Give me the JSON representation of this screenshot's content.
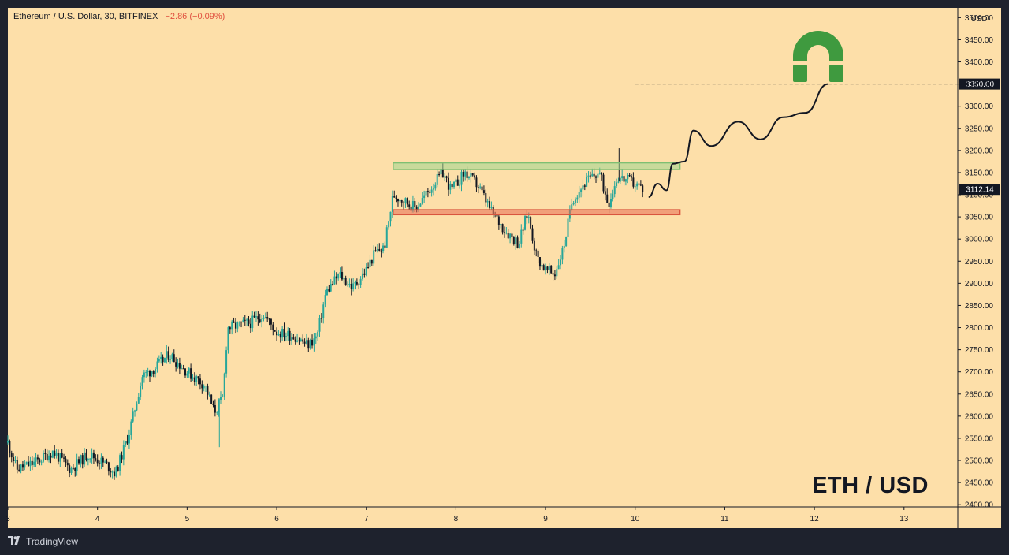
{
  "header": {
    "symbol": "Ethereum / U.S. Dollar, 30, BITFINEX",
    "change": "−2.86 (−0.09%)"
  },
  "footer": {
    "brand": "TradingView"
  },
  "overlay_label": "ETH / USD",
  "colors": {
    "background": "#fddfa9",
    "frame": "#1e222d",
    "candle_up": "#26a69a",
    "candle_down": "#131722",
    "resistance": "#9ed68f",
    "support": "#e86a52",
    "magnet": "#3f9a3f",
    "change_text": "#e0503f"
  },
  "icons": {
    "magnet": "magnet-icon",
    "brand": "tradingview-logo-icon"
  },
  "chart_data": {
    "type": "candlestick",
    "title": "Ethereum / U.S. Dollar, 30, BITFINEX",
    "currency": "USD",
    "x_ticks": [
      "3",
      "4",
      "5",
      "6",
      "7",
      "8",
      "9",
      "10",
      "11",
      "12",
      "13"
    ],
    "x_range": [
      3,
      13.6
    ],
    "y_ticks": [
      2400,
      2450,
      2500,
      2550,
      2600,
      2650,
      2700,
      2750,
      2800,
      2850,
      2900,
      2950,
      3000,
      3050,
      3100,
      3150,
      3200,
      3250,
      3300,
      3350,
      3400,
      3450,
      3500
    ],
    "y_range": [
      2395,
      3522
    ],
    "y_tick_format": "0.00",
    "price_trend": [
      [
        3.0,
        2540
      ],
      [
        3.1,
        2480
      ],
      [
        3.3,
        2495
      ],
      [
        3.5,
        2520
      ],
      [
        3.7,
        2480
      ],
      [
        3.9,
        2515
      ],
      [
        4.1,
        2490
      ],
      [
        4.2,
        2470
      ],
      [
        4.35,
        2560
      ],
      [
        4.5,
        2690
      ],
      [
        4.65,
        2710
      ],
      [
        4.8,
        2740
      ],
      [
        5.0,
        2700
      ],
      [
        5.2,
        2670
      ],
      [
        5.3,
        2610
      ],
      [
        5.4,
        2640
      ],
      [
        5.45,
        2800
      ],
      [
        5.7,
        2810
      ],
      [
        5.85,
        2830
      ],
      [
        6.0,
        2790
      ],
      [
        6.2,
        2780
      ],
      [
        6.35,
        2760
      ],
      [
        6.45,
        2780
      ],
      [
        6.55,
        2880
      ],
      [
        6.7,
        2920
      ],
      [
        6.85,
        2890
      ],
      [
        7.0,
        2930
      ],
      [
        7.1,
        2970
      ],
      [
        7.2,
        2980
      ],
      [
        7.3,
        3100
      ],
      [
        7.4,
        3090
      ],
      [
        7.55,
        3070
      ],
      [
        7.7,
        3110
      ],
      [
        7.85,
        3150
      ],
      [
        7.95,
        3110
      ],
      [
        8.1,
        3150
      ],
      [
        8.25,
        3120
      ],
      [
        8.4,
        3060
      ],
      [
        8.55,
        3020
      ],
      [
        8.7,
        2990
      ],
      [
        8.8,
        3060
      ],
      [
        8.9,
        2960
      ],
      [
        9.0,
        2930
      ],
      [
        9.1,
        2920
      ],
      [
        9.2,
        2980
      ],
      [
        9.3,
        3090
      ],
      [
        9.45,
        3130
      ],
      [
        9.6,
        3150
      ],
      [
        9.7,
        3080
      ],
      [
        9.8,
        3140
      ],
      [
        9.95,
        3130
      ],
      [
        10.1,
        3112
      ]
    ],
    "wick_extremes": {
      "high": 3205,
      "low": 2530
    },
    "last_price": 3112.14,
    "target_price": 3350.0,
    "zones": [
      {
        "name": "resistance",
        "from": 3157,
        "to": 3172,
        "x_start": 7.3,
        "x_end": 10.5
      },
      {
        "name": "support",
        "from": 3055,
        "to": 3066,
        "x_start": 7.3,
        "x_end": 10.5
      }
    ],
    "projection": [
      [
        10.15,
        3095
      ],
      [
        10.25,
        3125
      ],
      [
        10.35,
        3110
      ],
      [
        10.42,
        3170
      ],
      [
        10.55,
        3175
      ],
      [
        10.65,
        3245
      ],
      [
        10.85,
        3210
      ],
      [
        11.15,
        3265
      ],
      [
        11.4,
        3225
      ],
      [
        11.65,
        3275
      ],
      [
        11.9,
        3285
      ],
      [
        12.15,
        3350
      ]
    ]
  }
}
